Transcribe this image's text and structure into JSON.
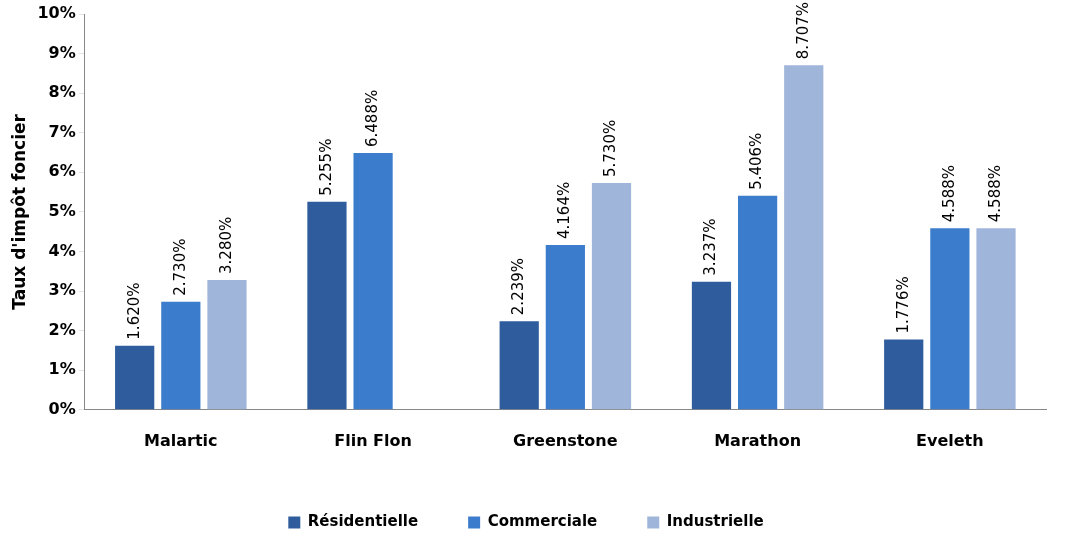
{
  "chart_data": {
    "type": "bar",
    "ylabel": "Taux d'impôt foncier",
    "categories": [
      "Malartic",
      "Flin Flon",
      "Greenstone",
      "Marathon",
      "Eveleth"
    ],
    "series": [
      {
        "name": "Résidentielle",
        "color": "#2e5c9c",
        "values": [
          1.62,
          5.255,
          2.239,
          3.237,
          1.776
        ],
        "value_labels": [
          "1.620%",
          "5.255%",
          "2.239%",
          "3.237%",
          "1.776%"
        ]
      },
      {
        "name": "Commerciale",
        "color": "#3b7dcc",
        "values": [
          2.73,
          6.488,
          4.164,
          5.406,
          4.588
        ],
        "value_labels": [
          "2.730%",
          "6.488%",
          "4.164%",
          "5.406%",
          "4.588%"
        ]
      },
      {
        "name": "Industrielle",
        "color": "#a0b5da",
        "values": [
          3.28,
          null,
          5.73,
          8.707,
          4.588
        ],
        "value_labels": [
          "3.280%",
          null,
          "5.730%",
          "8.707%",
          "4.588%"
        ]
      }
    ],
    "ylim": [
      0,
      10
    ],
    "yticks": [
      {
        "value": 0,
        "label": "0%"
      },
      {
        "value": 1,
        "label": "1%"
      },
      {
        "value": 2,
        "label": "2%"
      },
      {
        "value": 3,
        "label": "3%"
      },
      {
        "value": 4,
        "label": "4%"
      },
      {
        "value": 5,
        "label": "5%"
      },
      {
        "value": 6,
        "label": "6%"
      },
      {
        "value": 7,
        "label": "7%"
      },
      {
        "value": 8,
        "label": "8%"
      },
      {
        "value": 9,
        "label": "9%"
      },
      {
        "value": 10,
        "label": "10%"
      }
    ],
    "grid": false,
    "legend": "bottom"
  }
}
